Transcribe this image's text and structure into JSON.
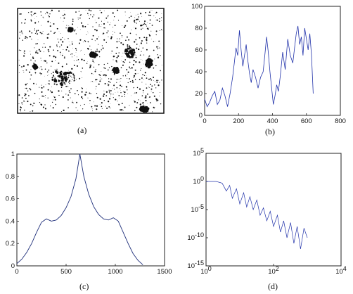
{
  "figure": {
    "captions": [
      "(a)",
      "(b)",
      "(c)",
      "(d)"
    ]
  },
  "panel_a": {
    "image": "binary-speckle-image",
    "colors": {
      "ink": "#111111",
      "paper": "#ffffff"
    }
  },
  "chart_data": [
    {
      "id": "b",
      "type": "line",
      "series_color": "#2233aa",
      "xlim": [
        0,
        800
      ],
      "ylim": [
        0,
        100
      ],
      "xticks": [
        0,
        200,
        400,
        600,
        800
      ],
      "xtick_labels": [
        "0",
        "200",
        "400",
        "600",
        "800"
      ],
      "yticks": [
        0,
        20,
        40,
        60,
        80,
        100
      ],
      "ytick_labels": [
        "0",
        "20",
        "40",
        "60",
        "80",
        "100"
      ],
      "x": [
        0,
        15,
        30,
        45,
        60,
        75,
        90,
        105,
        120,
        135,
        150,
        165,
        175,
        185,
        195,
        205,
        215,
        225,
        235,
        245,
        255,
        265,
        275,
        285,
        300,
        315,
        330,
        345,
        355,
        365,
        375,
        385,
        395,
        405,
        415,
        425,
        435,
        445,
        460,
        475,
        490,
        505,
        520,
        530,
        540,
        550,
        560,
        570,
        580,
        590,
        600,
        610,
        620,
        630,
        640
      ],
      "y": [
        15,
        8,
        12,
        18,
        22,
        10,
        14,
        25,
        18,
        8,
        20,
        35,
        48,
        62,
        55,
        78,
        60,
        45,
        55,
        65,
        50,
        38,
        30,
        42,
        35,
        25,
        35,
        40,
        55,
        72,
        58,
        40,
        25,
        10,
        18,
        28,
        22,
        35,
        58,
        42,
        70,
        55,
        48,
        62,
        75,
        82,
        65,
        72,
        55,
        80,
        70,
        60,
        75,
        55,
        20
      ]
    },
    {
      "id": "c",
      "type": "line",
      "series_color": "#1f2f7a",
      "xlim": [
        0,
        1500
      ],
      "ylim": [
        0,
        1
      ],
      "xticks": [
        0,
        500,
        1000,
        1500
      ],
      "xtick_labels": [
        "0",
        "500",
        "1000",
        "1500"
      ],
      "yticks": [
        0,
        0.2,
        0.4,
        0.6,
        0.8,
        1
      ],
      "ytick_labels": [
        "0",
        "0.2",
        "0.4",
        "0.6",
        "0.8",
        "1"
      ],
      "x": [
        0,
        50,
        100,
        150,
        200,
        250,
        300,
        350,
        400,
        450,
        500,
        550,
        600,
        640,
        680,
        730,
        780,
        830,
        880,
        930,
        980,
        1030,
        1080,
        1130,
        1180,
        1230,
        1280
      ],
      "y": [
        0.02,
        0.06,
        0.12,
        0.2,
        0.3,
        0.39,
        0.42,
        0.4,
        0.41,
        0.45,
        0.52,
        0.62,
        0.78,
        1.0,
        0.8,
        0.64,
        0.53,
        0.46,
        0.42,
        0.41,
        0.43,
        0.4,
        0.3,
        0.2,
        0.11,
        0.05,
        0.01
      ]
    },
    {
      "id": "d",
      "type": "line",
      "scale": "log-log",
      "series_color": "#2233aa",
      "xlim": [
        1,
        10000
      ],
      "ylim": [
        1e-15,
        100000.0
      ],
      "xticks": [
        1,
        100,
        10000
      ],
      "xtick_labels": [
        {
          "base": "10",
          "exp": "0"
        },
        {
          "base": "10",
          "exp": "2"
        },
        {
          "base": "10",
          "exp": "4"
        }
      ],
      "yticks": [
        1e-15,
        1e-10,
        1e-05,
        1,
        100000.0
      ],
      "ytick_labels": [
        {
          "base": "10",
          "exp": "-15"
        },
        {
          "base": "10",
          "exp": "-10"
        },
        {
          "base": "10",
          "exp": "-5"
        },
        {
          "base": "10",
          "exp": "0"
        },
        {
          "base": "10",
          "exp": "5"
        }
      ],
      "x": [
        1,
        2,
        3,
        4,
        5,
        6,
        8,
        10,
        13,
        16,
        20,
        25,
        32,
        40,
        50,
        63,
        80,
        100,
        130,
        160,
        200,
        250,
        320,
        400,
        500,
        630,
        800,
        1000
      ],
      "y": [
        1,
        1,
        0.5,
        0.02,
        0.2,
        0.001,
        0.05,
        0.0001,
        0.01,
        3e-05,
        0.002,
        1e-05,
        0.0005,
        1e-06,
        2e-05,
        1e-07,
        5e-06,
        1e-08,
        1e-06,
        1e-09,
        1e-07,
        1e-10,
        5e-08,
        1e-11,
        1e-08,
        1e-12,
        5e-09,
        1e-10
      ]
    }
  ]
}
